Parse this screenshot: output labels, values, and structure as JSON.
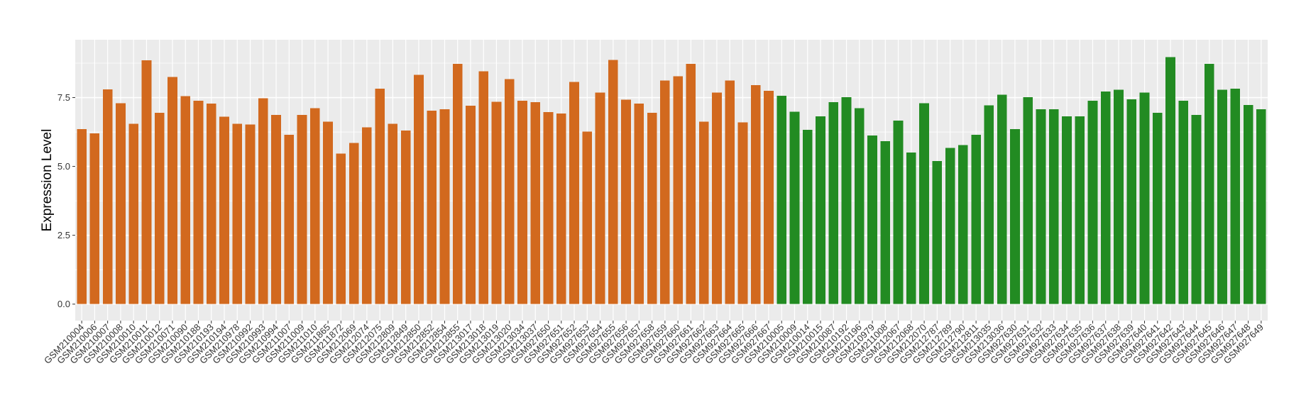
{
  "chart_data": {
    "type": "bar",
    "title": "",
    "xlabel": "",
    "ylabel": "Expression Level",
    "ylim": [
      -0.6,
      9.6
    ],
    "yticks": [
      0.0,
      2.5,
      5.0,
      7.5
    ],
    "ytick_labels": [
      "0.0",
      "2.5",
      "5.0",
      "7.5"
    ],
    "grid": true,
    "legend": "none",
    "colors": {
      "group1": "#D2691E",
      "group2": "#228B22",
      "panel": "#EBEBEB",
      "gridline": "#FFFFFF",
      "text": "#333333"
    },
    "categories": [
      "GSM210004",
      "GSM210006",
      "GSM210007",
      "GSM210008",
      "GSM210010",
      "GSM210011",
      "GSM210012",
      "GSM210071",
      "GSM210090",
      "GSM210188",
      "GSM210193",
      "GSM210194",
      "GSM210978",
      "GSM210992",
      "GSM210993",
      "GSM210994",
      "GSM211007",
      "GSM211009",
      "GSM211010",
      "GSM211865",
      "GSM211872",
      "GSM212069",
      "GSM212074",
      "GSM212075",
      "GSM212809",
      "GSM212849",
      "GSM212850",
      "GSM212852",
      "GSM212854",
      "GSM212855",
      "GSM213017",
      "GSM213018",
      "GSM213019",
      "GSM213020",
      "GSM213034",
      "GSM213037",
      "GSM927650",
      "GSM927651",
      "GSM927652",
      "GSM927653",
      "GSM927654",
      "GSM927655",
      "GSM927656",
      "GSM927657",
      "GSM927658",
      "GSM927659",
      "GSM927660",
      "GSM927661",
      "GSM927662",
      "GSM927663",
      "GSM927664",
      "GSM927665",
      "GSM927666",
      "GSM927667",
      "GSM210005",
      "GSM210009",
      "GSM210014",
      "GSM210015",
      "GSM210087",
      "GSM210192",
      "GSM210196",
      "GSM210979",
      "GSM211008",
      "GSM212067",
      "GSM212068",
      "GSM212070",
      "GSM212787",
      "GSM212789",
      "GSM212790",
      "GSM212811",
      "GSM213035",
      "GSM213036",
      "GSM927630",
      "GSM927631",
      "GSM927632",
      "GSM927633",
      "GSM927634",
      "GSM927635",
      "GSM927636",
      "GSM927637",
      "GSM927638",
      "GSM927639",
      "GSM927640",
      "GSM927641",
      "GSM927642",
      "GSM927643",
      "GSM927644",
      "GSM927645",
      "GSM927646",
      "GSM927647",
      "GSM927648",
      "GSM927649"
    ],
    "values": [
      6.35,
      6.2,
      7.8,
      7.3,
      6.55,
      8.85,
      6.95,
      8.25,
      7.55,
      7.38,
      7.28,
      6.8,
      6.55,
      6.52,
      7.48,
      6.87,
      6.15,
      6.87,
      7.12,
      6.63,
      5.47,
      5.85,
      6.42,
      7.82,
      6.55,
      6.3,
      8.33,
      7.03,
      7.08,
      8.72,
      7.2,
      8.45,
      7.35,
      8.17,
      7.38,
      7.33,
      6.97,
      6.92,
      8.07,
      6.27,
      7.68,
      8.87,
      7.42,
      7.28,
      6.95,
      8.12,
      8.27,
      8.72,
      6.62,
      7.68,
      8.12,
      6.6,
      7.95,
      7.75,
      7.57,
      6.98,
      6.33,
      6.82,
      7.33,
      7.52,
      7.12,
      6.12,
      5.92,
      6.67,
      5.5,
      7.3,
      5.2,
      5.67,
      5.78,
      6.15,
      7.22,
      7.6,
      6.35,
      7.52,
      7.07,
      7.08,
      6.82,
      6.82,
      7.38,
      7.72,
      7.78,
      7.43,
      7.68,
      6.95,
      8.97,
      7.38,
      6.87,
      8.72,
      7.78,
      7.82,
      7.23,
      7.08
    ],
    "groups": [
      1,
      1,
      1,
      1,
      1,
      1,
      1,
      1,
      1,
      1,
      1,
      1,
      1,
      1,
      1,
      1,
      1,
      1,
      1,
      1,
      1,
      1,
      1,
      1,
      1,
      1,
      1,
      1,
      1,
      1,
      1,
      1,
      1,
      1,
      1,
      1,
      1,
      1,
      1,
      1,
      1,
      1,
      1,
      1,
      1,
      1,
      1,
      1,
      1,
      1,
      1,
      1,
      1,
      1,
      2,
      2,
      2,
      2,
      2,
      2,
      2,
      2,
      2,
      2,
      2,
      2,
      2,
      2,
      2,
      2,
      2,
      2,
      2,
      2,
      2,
      2,
      2,
      2,
      2,
      2,
      2,
      2,
      2,
      2,
      2,
      2,
      2,
      2,
      2,
      2,
      2,
      2
    ]
  }
}
